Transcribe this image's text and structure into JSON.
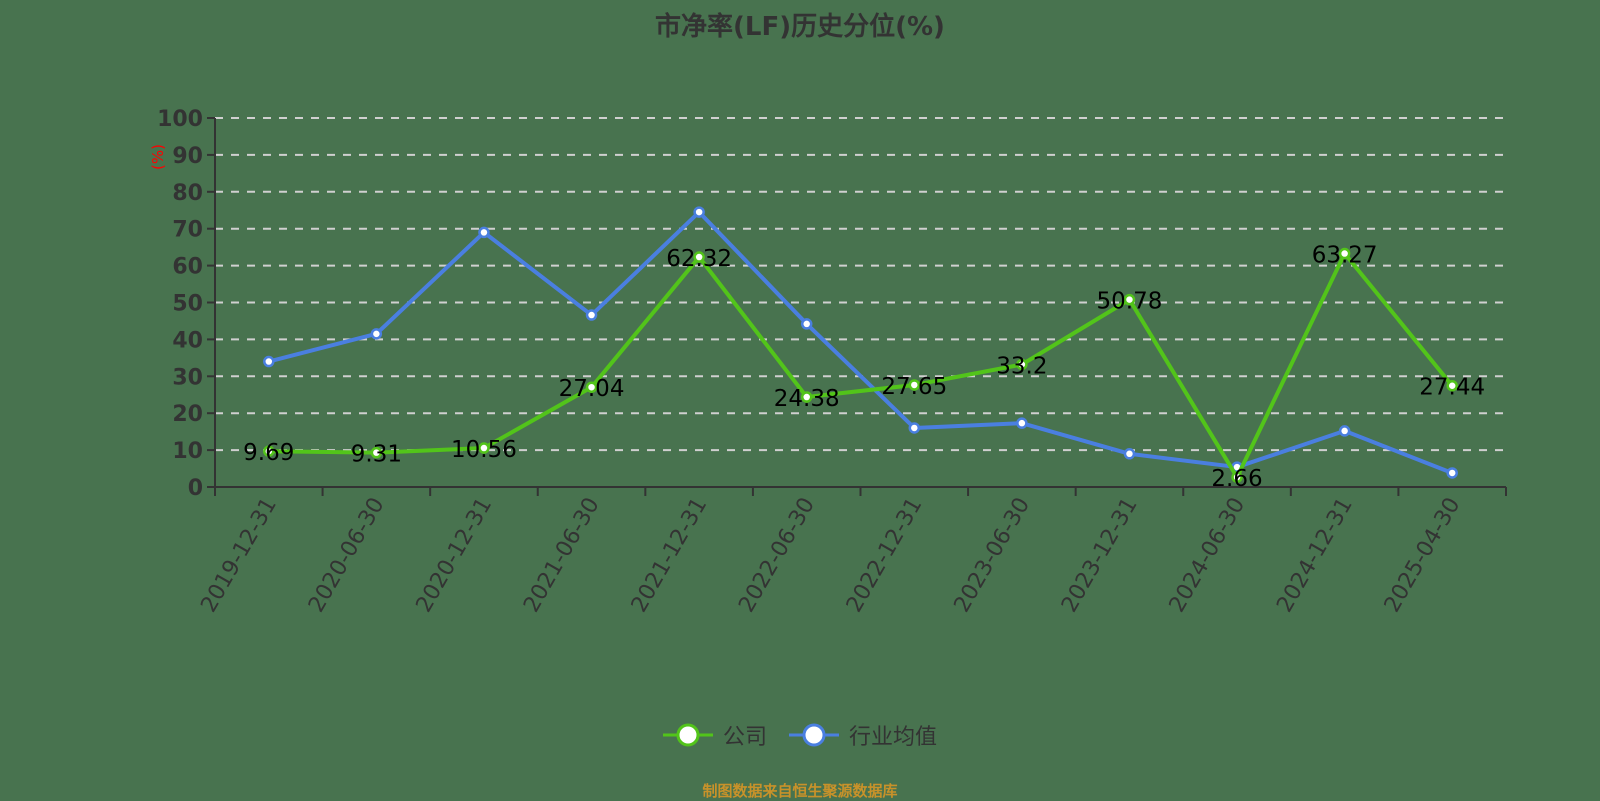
{
  "chart_data": {
    "type": "line",
    "title": "市净率(LF)历史分位(%)",
    "xlabel": "",
    "ylabel": "(%)",
    "ylim": [
      0,
      100
    ],
    "yticks": [
      0,
      10,
      20,
      30,
      40,
      50,
      60,
      70,
      80,
      90,
      100
    ],
    "grid": true,
    "legend_position": "bottom",
    "categories": [
      "2019-12-31",
      "2020-06-30",
      "2020-12-31",
      "2021-06-30",
      "2021-12-31",
      "2022-06-30",
      "2022-12-31",
      "2023-06-30",
      "2023-12-31",
      "2024-06-30",
      "2024-12-31",
      "2025-04-30"
    ],
    "series": [
      {
        "name": "公司",
        "color": "#52c41a",
        "show_labels": true,
        "values": [
          9.69,
          9.31,
          10.56,
          27.04,
          62.32,
          24.38,
          27.65,
          33.2,
          50.78,
          2.66,
          63.27,
          27.44
        ]
      },
      {
        "name": "行业均值",
        "color": "#4a7fe0",
        "show_labels": false,
        "values": [
          34.0,
          41.5,
          69.0,
          46.6,
          74.5,
          44.2,
          16.0,
          17.3,
          9.0,
          5.4,
          15.2,
          3.8
        ]
      }
    ]
  },
  "title": "市净率(LF)历史分位(%)",
  "y_axis_unit": "(%)",
  "legend": [
    {
      "label": "公司",
      "color": "#52c41a"
    },
    {
      "label": "行业均值",
      "color": "#4a7fe0"
    }
  ],
  "source": "制图数据来自恒生聚源数据库",
  "colors": {
    "background": "#48734f",
    "axis": "#333333",
    "grid": "#d0d0d0",
    "unit": "#ff0000",
    "source": "#c8922a"
  }
}
